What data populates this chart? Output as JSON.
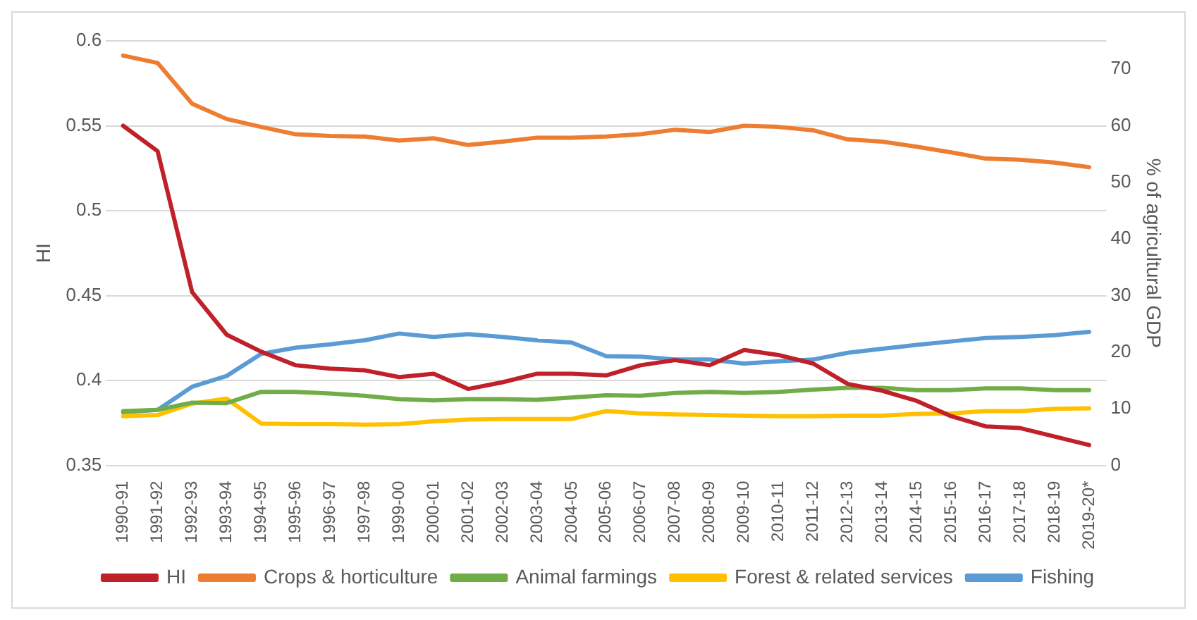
{
  "chart_data": {
    "type": "line",
    "ylabel": "HI",
    "y2label": "% of agricultural GDP",
    "categories": [
      "1990-91",
      "1991-92",
      "1992-93",
      "1993-94",
      "1994-95",
      "1995-96",
      "1996-97",
      "1997-98",
      "1999-00",
      "2000-01",
      "2001-02",
      "2002-03",
      "2003-04",
      "2004-05",
      "2005-06",
      "2006-07",
      "2007-08",
      "2008-09",
      "2009-10",
      "2010-11",
      "2011-12",
      "2012-13",
      "2013-14",
      "2014-15",
      "2015-16",
      "2016-17",
      "2017-18",
      "2018-19",
      "2019-20*"
    ],
    "series": [
      {
        "name": "HI",
        "color": "#c0202a",
        "values": [
          0.55,
          0.535,
          0.452,
          0.427,
          0.417,
          0.409,
          0.407,
          0.406,
          0.402,
          0.404,
          0.395,
          0.399,
          0.404,
          0.404,
          0.403,
          0.409,
          0.412,
          0.409,
          0.418,
          0.415,
          0.41,
          0.398,
          0.394,
          0.388,
          0.379,
          0.373,
          0.372,
          0.367,
          0.362
        ]
      },
      {
        "name": "Crops & horticulture",
        "color": "#ed7d31",
        "axis": "y2",
        "values": [
          72.4,
          71.1,
          63.9,
          61.2,
          59.8,
          58.5,
          58.2,
          58.1,
          57.4,
          57.8,
          56.6,
          57.2,
          57.9,
          57.9,
          58.1,
          58.5,
          59.3,
          58.9,
          60.0,
          59.8,
          59.2,
          57.6,
          57.2,
          56.3,
          55.3,
          54.2,
          54.0,
          53.5,
          52.7
        ]
      },
      {
        "name": "Animal farmings",
        "color": "#70ad47",
        "axis": "y2",
        "values": [
          9.6,
          9.8,
          11.1,
          11.0,
          13.0,
          13.0,
          12.7,
          12.3,
          11.7,
          11.5,
          11.7,
          11.7,
          11.6,
          12.0,
          12.4,
          12.3,
          12.8,
          13.0,
          12.8,
          13.0,
          13.4,
          13.7,
          13.7,
          13.3,
          13.3,
          13.6,
          13.6,
          13.3,
          13.3
        ]
      },
      {
        "name": "Forest & related services",
        "color": "#ffc000",
        "axis": "y2",
        "values": [
          8.7,
          8.9,
          10.9,
          11.8,
          7.4,
          7.3,
          7.3,
          7.2,
          7.3,
          7.8,
          8.1,
          8.2,
          8.2,
          8.2,
          9.6,
          9.2,
          9.0,
          8.9,
          8.8,
          8.7,
          8.7,
          8.8,
          8.8,
          9.1,
          9.2,
          9.6,
          9.6,
          10.0,
          10.1
        ]
      },
      {
        "name": "Fishing",
        "color": "#5b9bd5",
        "axis": "y2",
        "values": [
          9.4,
          9.8,
          13.9,
          15.8,
          19.7,
          20.8,
          21.4,
          22.1,
          23.3,
          22.7,
          23.2,
          22.7,
          22.1,
          21.7,
          19.3,
          19.2,
          18.7,
          18.7,
          18.0,
          18.4,
          18.7,
          19.9,
          20.6,
          21.3,
          21.9,
          22.5,
          22.7,
          23.0,
          23.6
        ]
      }
    ],
    "ylim": [
      0.35,
      0.6
    ],
    "yticks": [
      0.35,
      0.4,
      0.45,
      0.5,
      0.55,
      0.6
    ],
    "y2lim": [
      0,
      75
    ],
    "y2ticks": [
      0,
      10,
      20,
      30,
      40,
      50,
      60,
      70
    ],
    "grid": "y",
    "legend": "bottom",
    "marker": "none",
    "line_style": "solid"
  }
}
